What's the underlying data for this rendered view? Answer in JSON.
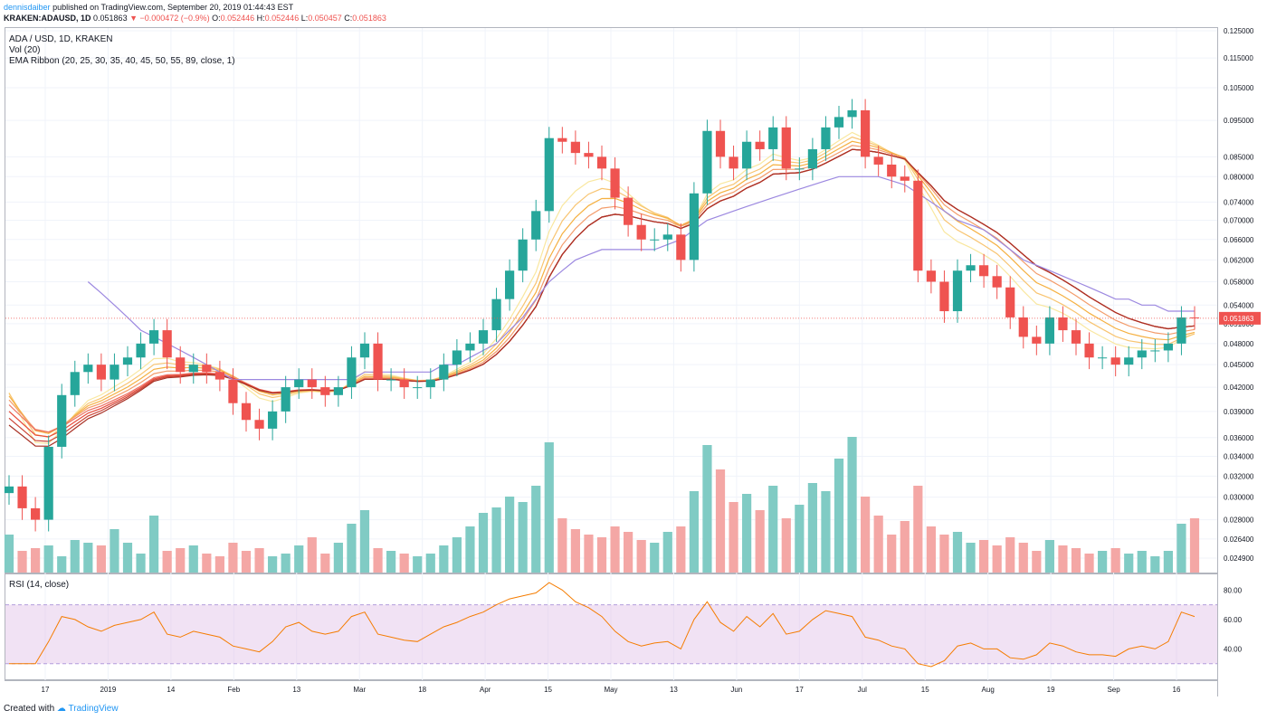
{
  "header": {
    "author": "dennisdaiber",
    "published_text": "published on TradingView.com, September 20, 2019 01:44:43 EST",
    "symbol": "KRAKEN:ADAUSD, 1D",
    "price": "0.051863",
    "change": "▼ −0.000472 (−0.9%)",
    "ohlc": {
      "o_label": "O:",
      "o": "0.052446",
      "h_label": "H:",
      "h": "0.052446",
      "l_label": "L:",
      "l": "0.050457",
      "c_label": "C:",
      "c": "0.051863"
    }
  },
  "legend": {
    "pair": "ADA / USD, 1D, KRAKEN",
    "volume": "Vol (20)",
    "ribbon": "EMA Ribbon (20, 25, 30, 35, 40, 45, 50, 55, 89, close, 1)",
    "rsi": "RSI (14, close)"
  },
  "footer": {
    "created_with": "Created with",
    "brand": "TradingView"
  },
  "colors": {
    "up": "#26a69a",
    "down": "#ef5350",
    "up_volume": "#80cbc4",
    "down_volume": "#f4a7a5",
    "ema_slow": "#9c88e0",
    "ema_ribbon": [
      "#f9e79f",
      "#f8c471",
      "#f5b041",
      "#f39c6b",
      "#ec7063",
      "#e74c3c",
      "#cb4335",
      "#a93226"
    ],
    "rsi_line": "#f57c00",
    "rsi_band": "#e1bee7",
    "price_label": "#ef5350"
  },
  "chart_data": {
    "type": "candlestick",
    "price_scale": "log",
    "y_ticks": [
      "0.125000",
      "0.115000",
      "0.105000",
      "0.095000",
      "0.085000",
      "0.080000",
      "0.074000",
      "0.070000",
      "0.066000",
      "0.062000",
      "0.058000",
      "0.054000",
      "0.051000",
      "0.048000",
      "0.045000",
      "0.042000",
      "0.039000",
      "0.036000",
      "0.034000",
      "0.032000",
      "0.030000",
      "0.028000",
      "0.026400",
      "0.024900"
    ],
    "last_price_label": "0.051863",
    "x_ticks": [
      "17",
      "2019",
      "14",
      "Feb",
      "13",
      "Mar",
      "18",
      "Apr",
      "15",
      "May",
      "13",
      "Jun",
      "17",
      "Jul",
      "15",
      "Aug",
      "19",
      "Sep",
      "16"
    ],
    "close_series": [
      0.031,
      0.029,
      0.028,
      0.035,
      0.041,
      0.044,
      0.045,
      0.043,
      0.045,
      0.046,
      0.048,
      0.05,
      0.046,
      0.044,
      0.045,
      0.044,
      0.043,
      0.04,
      0.038,
      0.037,
      0.039,
      0.042,
      0.043,
      0.042,
      0.041,
      0.042,
      0.046,
      0.048,
      0.043,
      0.043,
      0.042,
      0.042,
      0.043,
      0.045,
      0.047,
      0.048,
      0.05,
      0.055,
      0.06,
      0.066,
      0.072,
      0.09,
      0.089,
      0.086,
      0.085,
      0.082,
      0.075,
      0.069,
      0.066,
      0.066,
      0.067,
      0.062,
      0.076,
      0.092,
      0.085,
      0.082,
      0.089,
      0.087,
      0.093,
      0.082,
      0.082,
      0.087,
      0.093,
      0.096,
      0.098,
      0.085,
      0.083,
      0.08,
      0.079,
      0.06,
      0.058,
      0.053,
      0.06,
      0.061,
      0.059,
      0.057,
      0.052,
      0.049,
      0.048,
      0.052,
      0.05,
      0.048,
      0.046,
      0.046,
      0.045,
      0.046,
      0.047,
      0.047,
      0.048,
      0.052,
      0.0519
    ],
    "ema_slow_series": [
      null,
      null,
      null,
      null,
      null,
      null,
      0.058,
      0.056,
      0.054,
      0.052,
      0.05,
      0.049,
      0.048,
      0.047,
      0.046,
      0.045,
      0.044,
      0.043,
      0.043,
      0.043,
      0.043,
      0.043,
      0.043,
      0.043,
      0.043,
      0.043,
      0.043,
      0.044,
      0.044,
      0.044,
      0.044,
      0.044,
      0.044,
      0.045,
      0.045,
      0.046,
      0.047,
      0.048,
      0.05,
      0.052,
      0.055,
      0.058,
      0.06,
      0.062,
      0.063,
      0.064,
      0.064,
      0.064,
      0.064,
      0.064,
      0.065,
      0.066,
      0.068,
      0.07,
      0.071,
      0.072,
      0.073,
      0.074,
      0.075,
      0.076,
      0.077,
      0.078,
      0.079,
      0.08,
      0.08,
      0.08,
      0.08,
      0.079,
      0.078,
      0.076,
      0.074,
      0.072,
      0.07,
      0.069,
      0.068,
      0.066,
      0.064,
      0.062,
      0.061,
      0.06,
      0.059,
      0.058,
      0.057,
      0.056,
      0.055,
      0.055,
      0.054,
      0.054,
      0.053,
      0.053,
      0.053
    ],
    "volume_series": [
      0.28,
      0.16,
      0.18,
      0.2,
      0.12,
      0.24,
      0.22,
      0.2,
      0.32,
      0.22,
      0.14,
      0.42,
      0.16,
      0.18,
      0.2,
      0.14,
      0.12,
      0.22,
      0.16,
      0.18,
      0.12,
      0.14,
      0.2,
      0.26,
      0.14,
      0.22,
      0.36,
      0.46,
      0.18,
      0.16,
      0.14,
      0.12,
      0.14,
      0.2,
      0.26,
      0.34,
      0.44,
      0.48,
      0.56,
      0.52,
      0.64,
      0.96,
      0.4,
      0.32,
      0.28,
      0.26,
      0.34,
      0.3,
      0.24,
      0.22,
      0.3,
      0.34,
      0.6,
      0.94,
      0.76,
      0.52,
      0.58,
      0.46,
      0.64,
      0.4,
      0.5,
      0.66,
      0.6,
      0.84,
      1.0,
      0.56,
      0.42,
      0.28,
      0.38,
      0.64,
      0.34,
      0.28,
      0.3,
      0.22,
      0.24,
      0.2,
      0.26,
      0.22,
      0.16,
      0.24,
      0.2,
      0.18,
      0.14,
      0.16,
      0.18,
      0.14,
      0.16,
      0.12,
      0.16,
      0.36,
      0.4
    ],
    "rsi_series": [
      30,
      30,
      30,
      45,
      62,
      60,
      55,
      52,
      56,
      58,
      60,
      65,
      50,
      48,
      52,
      50,
      48,
      42,
      40,
      38,
      45,
      55,
      58,
      52,
      50,
      52,
      62,
      65,
      50,
      48,
      46,
      45,
      50,
      55,
      58,
      62,
      65,
      70,
      74,
      76,
      78,
      85,
      80,
      72,
      68,
      62,
      52,
      45,
      42,
      44,
      45,
      40,
      60,
      72,
      58,
      52,
      62,
      55,
      64,
      50,
      52,
      60,
      66,
      64,
      62,
      48,
      46,
      42,
      40,
      30,
      28,
      32,
      42,
      44,
      40,
      40,
      34,
      33,
      36,
      44,
      42,
      38,
      36,
      36,
      35,
      40,
      42,
      40,
      45,
      65,
      62
    ],
    "rsi_levels": [
      70,
      30
    ],
    "rsi_ticks": [
      "80.00",
      "60.00",
      "40.00"
    ]
  }
}
